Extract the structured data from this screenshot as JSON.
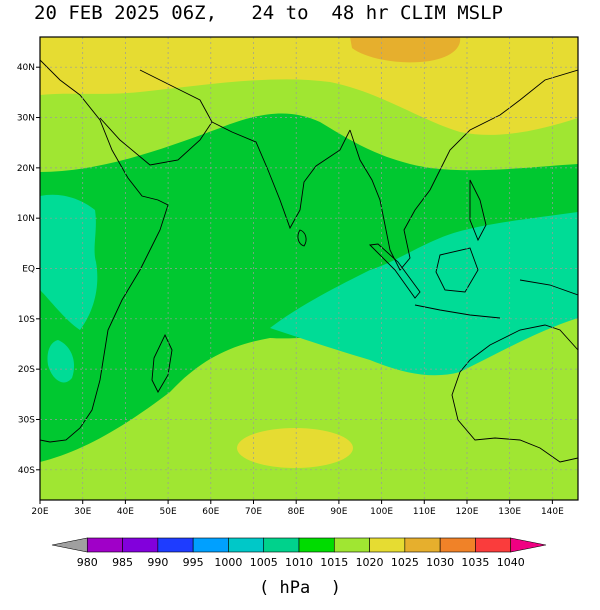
{
  "title": "20 FEB 2025 06Z,   24 to  48 hr CLIM MSLP",
  "map": {
    "lon_range": [
      20,
      146
    ],
    "lat_range": [
      -46,
      46
    ],
    "lon_ticks": [
      "20E",
      "30E",
      "40E",
      "50E",
      "60E",
      "70E",
      "80E",
      "90E",
      "100E",
      "110E",
      "120E",
      "130E",
      "140E"
    ],
    "lat_ticks": [
      "40N",
      "30N",
      "20N",
      "10N",
      "EQ",
      "10S",
      "20S",
      "30S",
      "40S"
    ],
    "gridlines": true,
    "colors": {
      "band_1010_1015": "#00c830",
      "band_1005_1010": "#00dc96",
      "band_1015_1020": "#a0e632",
      "band_1020_1025": "#e6dc32",
      "band_1025_1030": "#e6af2d",
      "coastline": "#000000",
      "grid": "#9a9a9a"
    }
  },
  "colorbar": {
    "labels": [
      "980",
      "985",
      "990",
      "995",
      "1000",
      "1005",
      "1010",
      "1015",
      "1020",
      "1025",
      "1030",
      "1035",
      "1040"
    ],
    "colors": [
      "#a0a0a0",
      "#a000c8",
      "#8200dc",
      "#1e3cff",
      "#00a0ff",
      "#00c8c8",
      "#00d28c",
      "#00dc00",
      "#a0e632",
      "#e6dc32",
      "#e6af2d",
      "#f08228",
      "#fa3c3c",
      "#f00082"
    ],
    "units": "( hPa  )"
  }
}
